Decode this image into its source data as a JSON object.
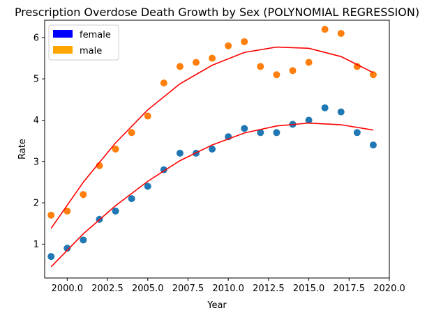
{
  "chart_data": {
    "type": "scatter",
    "title": "Prescription Overdose Death Growth by Sex (POLYNOMIAL REGRESSION)",
    "xlabel": "Year",
    "ylabel": "Rate",
    "xlim": [
      1998.6,
      2020.0
    ],
    "ylim": [
      0.18,
      6.42
    ],
    "x_ticks": [
      2000.0,
      2002.5,
      2005.0,
      2007.5,
      2010.0,
      2012.5,
      2015.0,
      2017.5,
      2020.0
    ],
    "x_tick_labels": [
      "2000.0",
      "2002.5",
      "2005.0",
      "2007.5",
      "2010.0",
      "2012.5",
      "2015.0",
      "2017.5",
      "2020.0"
    ],
    "y_ticks": [
      1,
      2,
      3,
      4,
      5,
      6
    ],
    "y_tick_labels": [
      "1",
      "2",
      "3",
      "4",
      "5",
      "6"
    ],
    "grid": false,
    "legend": {
      "placement": "top-left",
      "entries": [
        {
          "label": "female",
          "color": "#0000ff"
        },
        {
          "label": "male",
          "color": "#ffa500"
        }
      ]
    },
    "x": [
      1999,
      2000,
      2001,
      2002,
      2003,
      2004,
      2005,
      2006,
      2007,
      2008,
      2009,
      2010,
      2011,
      2012,
      2013,
      2014,
      2015,
      2016,
      2017,
      2018,
      2019
    ],
    "series": [
      {
        "kind": "points",
        "color": "#1f77b4",
        "values": [
          0.7,
          0.9,
          1.1,
          1.6,
          1.8,
          2.1,
          2.4,
          2.8,
          3.2,
          3.2,
          3.3,
          3.6,
          3.8,
          3.7,
          3.7,
          3.9,
          4.0,
          4.3,
          4.2,
          3.7,
          3.4
        ]
      },
      {
        "kind": "points",
        "color": "#ff7f0e",
        "values": [
          1.7,
          1.8,
          2.2,
          2.9,
          3.3,
          3.7,
          4.1,
          4.9,
          5.3,
          5.4,
          5.5,
          5.8,
          5.9,
          5.3,
          5.1,
          5.2,
          5.4,
          6.2,
          6.1,
          5.3,
          5.1
        ]
      },
      {
        "kind": "fit",
        "color": "#ff0000",
        "x": [
          1999,
          2001,
          2003,
          2005,
          2007,
          2009,
          2011,
          2013,
          2015,
          2017,
          2019
        ],
        "values": [
          0.45,
          1.25,
          1.93,
          2.52,
          3.02,
          3.4,
          3.69,
          3.86,
          3.93,
          3.89,
          3.76
        ]
      },
      {
        "kind": "fit",
        "color": "#ff0000",
        "x": [
          1999,
          2001,
          2003,
          2005,
          2007,
          2009,
          2011,
          2013,
          2015,
          2017,
          2019
        ],
        "values": [
          1.38,
          2.5,
          3.45,
          4.25,
          4.88,
          5.33,
          5.64,
          5.77,
          5.74,
          5.54,
          5.15
        ]
      }
    ]
  }
}
